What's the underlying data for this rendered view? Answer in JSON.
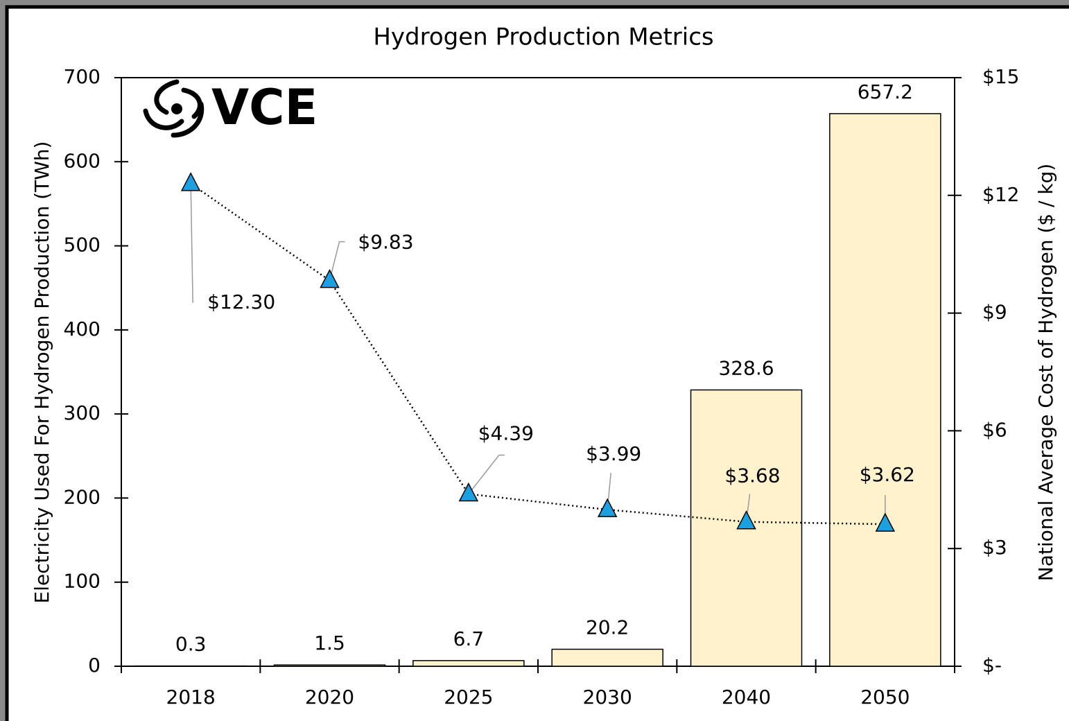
{
  "chart_data": {
    "type": "bar_line",
    "title": "Hydrogen Production Metrics",
    "logo": "VCE",
    "y_label": "Electricity Used For Hydrogen Production (TWh)",
    "y2_label": "National Average Cost of Hydrogen ($ / kg)",
    "categories": [
      "2018",
      "2020",
      "2025",
      "2030",
      "2040",
      "2050"
    ],
    "series": [
      {
        "type": "bar",
        "color": "#fff2cc",
        "values": [
          0.3,
          1.5,
          6.7,
          20.2,
          328.6,
          657.2
        ]
      },
      {
        "type": "line",
        "axis": "y2",
        "color": "#1ba1e2",
        "values": [
          12.3,
          9.83,
          4.39,
          3.99,
          3.68,
          3.62
        ],
        "value_labels": [
          "$12.30",
          "$9.83",
          "$4.39",
          "$3.99",
          "$3.68",
          "$3.62"
        ]
      }
    ],
    "ylim": [
      0,
      700
    ],
    "yticks": [
      0,
      100,
      200,
      300,
      400,
      500,
      600,
      700
    ],
    "y2lim": [
      0,
      15
    ],
    "y2ticks": [
      {
        "value": 0,
        "label": "$-"
      },
      {
        "value": 3,
        "label": "$3"
      },
      {
        "value": 6,
        "label": "$6"
      },
      {
        "value": 9,
        "label": "$9"
      },
      {
        "value": 12,
        "label": "$12"
      },
      {
        "value": 15,
        "label": "$15"
      }
    ]
  }
}
